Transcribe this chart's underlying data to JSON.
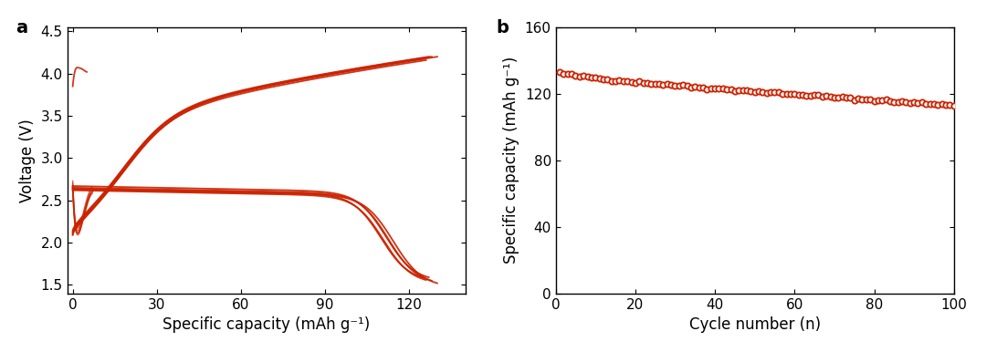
{
  "color": "#CC2200",
  "panel_a": {
    "xlabel": "Specific capacity (mAh g⁻¹)",
    "ylabel": "Voltage (V)",
    "xlim": [
      -2,
      140
    ],
    "ylim": [
      1.4,
      4.55
    ],
    "xticks": [
      0,
      30,
      60,
      90,
      120
    ],
    "yticks": [
      1.5,
      2.0,
      2.5,
      3.0,
      3.5,
      4.0,
      4.5
    ],
    "label": "a"
  },
  "panel_b": {
    "xlabel": "Cycle number (n)",
    "ylabel": "Specific capacity (mAh g⁻¹)",
    "xlim": [
      0,
      100
    ],
    "ylim": [
      0,
      160
    ],
    "xticks": [
      0,
      20,
      40,
      60,
      80,
      100
    ],
    "yticks": [
      0,
      40,
      80,
      120,
      160
    ],
    "label": "b",
    "start_capacity": 133,
    "end_capacity": 113,
    "n_cycles": 100
  }
}
